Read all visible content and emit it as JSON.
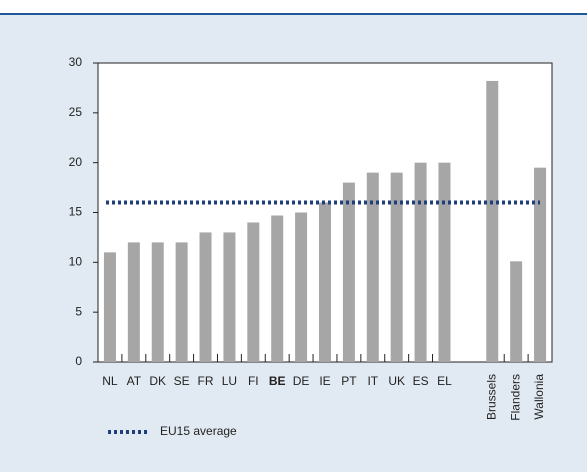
{
  "chart_data": {
    "type": "bar",
    "categories": [
      "NL",
      "AT",
      "DK",
      "SE",
      "FR",
      "LU",
      "FI",
      "BE",
      "DE",
      "IE",
      "PT",
      "IT",
      "UK",
      "ES",
      "EL",
      null,
      "Brussels",
      "Flanders",
      "Wallonia"
    ],
    "values": [
      11,
      12,
      12,
      12,
      13,
      13,
      14,
      14.7,
      15,
      16,
      18,
      19,
      19,
      20,
      20,
      null,
      28.2,
      10.1,
      19.5
    ],
    "color": "#a6a6a6",
    "highlighted_categories": [
      "BE"
    ],
    "reference_line": {
      "name": "EU15 average",
      "value": 16,
      "color": "#1f3f7a"
    },
    "ylim": [
      0,
      30
    ],
    "yticks": [
      0,
      5,
      10,
      15,
      20,
      25,
      30
    ],
    "grid": false,
    "legend": "bottom-left"
  }
}
